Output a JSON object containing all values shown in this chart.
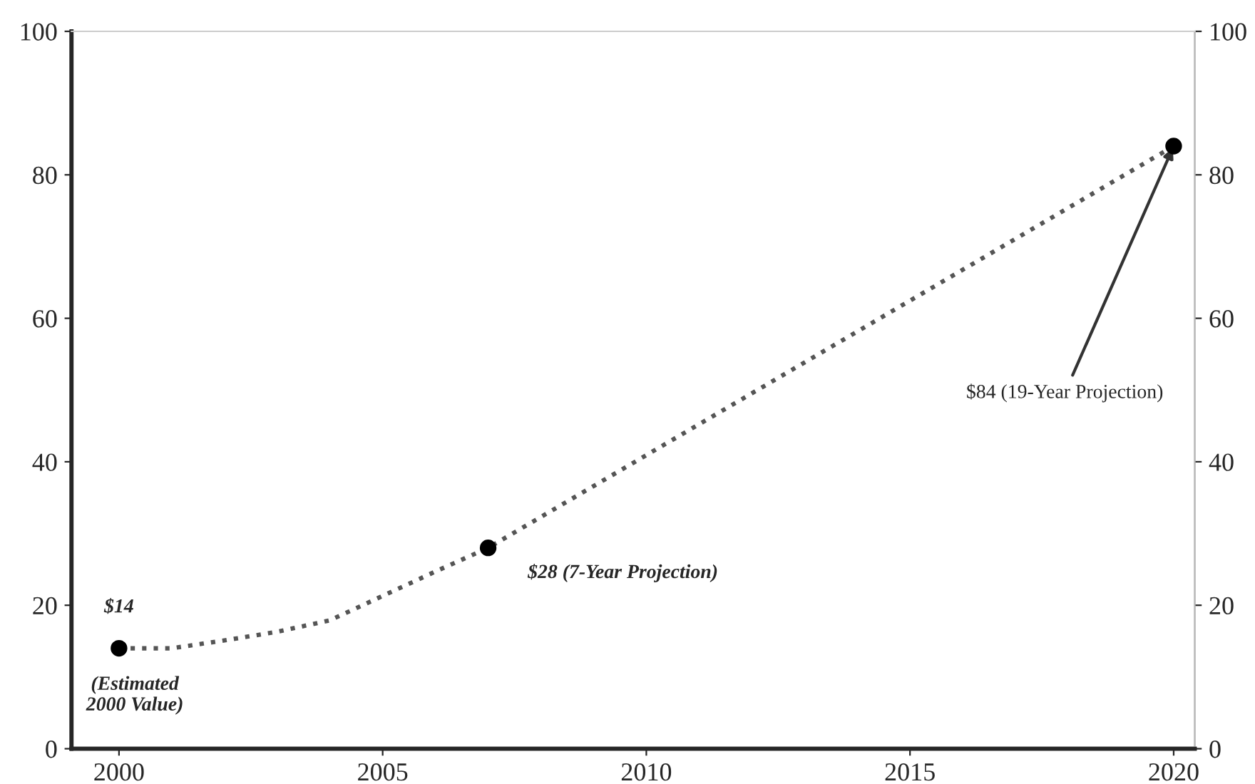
{
  "chart_data": {
    "type": "line",
    "xlim": [
      1999.1,
      2020.4
    ],
    "xticks": [
      2000,
      2005,
      2010,
      2015,
      2020
    ],
    "ylim": [
      0,
      100
    ],
    "yticks": [
      0,
      20,
      40,
      60,
      80,
      100
    ],
    "y2lim": [
      0,
      100
    ],
    "y2ticks": [
      0,
      20,
      40,
      60,
      80,
      100
    ],
    "grid": false,
    "legend": false,
    "series": [
      {
        "line_style": "dotted",
        "color": "#555555",
        "x": [
          2000,
          2001,
          2002,
          2003,
          2004,
          2005,
          2006,
          2007,
          2020
        ],
        "values": [
          14,
          14,
          15.1,
          16.3,
          17.9,
          21.3,
          24.7,
          28,
          84
        ]
      },
      {
        "type": "scatter",
        "marker": "circle",
        "color": "#000000",
        "x": [
          2000,
          2007,
          2020
        ],
        "values": [
          14,
          28,
          84
        ]
      }
    ],
    "annotations": [
      {
        "text": "$14",
        "x": 2000,
        "y": 14
      },
      {
        "text": "(Estimated\n2000 Value)",
        "x": 2000,
        "y": 14
      },
      {
        "text": "$28 (7-Year Projection)",
        "x": 2007,
        "y": 28
      },
      {
        "text": "$84 (19-Year Projection)",
        "x": 2020,
        "y": 84
      }
    ]
  }
}
